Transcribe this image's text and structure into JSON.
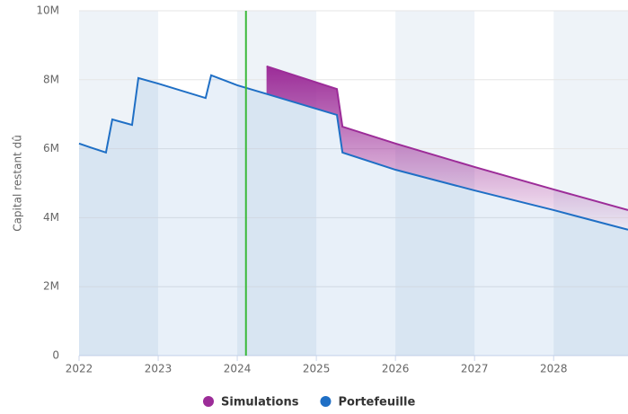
{
  "chart_data": {
    "type": "line",
    "y_axis_label": "Capital restant dû",
    "x": [
      2022.0,
      2022.14,
      2022.34,
      2022.42,
      2022.67,
      2022.75,
      2023.0,
      2023.6,
      2023.67,
      2024.0,
      2024.37,
      2025.26,
      2025.33,
      2026.0,
      2027.0,
      2028.0,
      2028.94
    ],
    "series": [
      {
        "name": "Simulations",
        "color": "#9c2c98",
        "values": [
          null,
          null,
          null,
          null,
          null,
          null,
          null,
          null,
          null,
          null,
          8390000,
          7730000,
          6640000,
          6150000,
          5470000,
          4820000,
          4220000
        ]
      },
      {
        "name": "Portefeuille",
        "color": "#1f6fc5",
        "values": [
          6150000,
          6040000,
          5890000,
          6850000,
          6690000,
          8050000,
          7890000,
          7470000,
          8130000,
          7840000,
          7590000,
          6980000,
          5890000,
          5390000,
          4790000,
          4220000,
          3650000
        ]
      }
    ],
    "xlim": [
      2022,
      2028.94
    ],
    "xticks": [
      2022,
      2023,
      2024,
      2025,
      2026,
      2027,
      2028
    ],
    "ylim": [
      0,
      10000000
    ],
    "yticks": [
      0,
      {
        "value": 2000000,
        "label": "2M"
      },
      {
        "value": 4000000,
        "label": "4M"
      },
      {
        "value": 6000000,
        "label": "6M"
      },
      {
        "value": 8000000,
        "label": "8M"
      },
      {
        "value": 10000000,
        "label": "10M"
      }
    ],
    "grid": true,
    "plot_line": {
      "x": 2024.11,
      "color": "#3cb93c"
    },
    "legend": "bottom"
  }
}
